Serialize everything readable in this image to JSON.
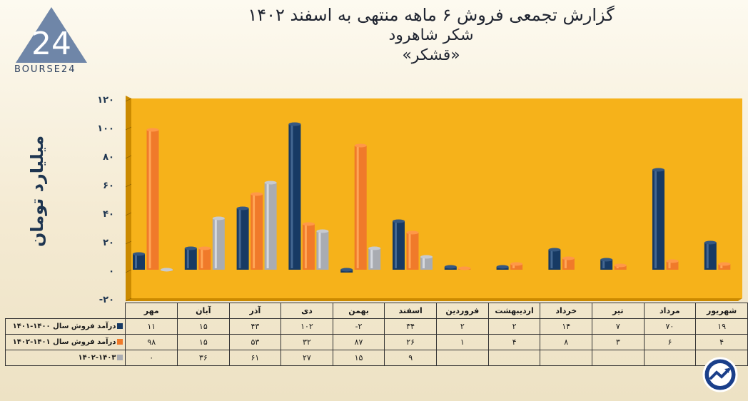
{
  "logo": {
    "text": "BOURSE24",
    "mark": "24"
  },
  "titles": {
    "line1": "گزارش تجمعی فروش ۶ ماهه منتهی به اسفند ۱۴۰۲",
    "line2": "شکر شاهرود",
    "line3": "«قشکر»"
  },
  "colors": {
    "blue": "#173a64",
    "orange": "#f07a2a",
    "gray": "#a9acb2",
    "plot_bg": "#f6b21a",
    "wall": "#cb8a00"
  },
  "chart_data": {
    "type": "bar",
    "ylabel": "میلیارد تومان",
    "ylim": [
      -20,
      120
    ],
    "yticks": [
      -20,
      0,
      20,
      40,
      60,
      80,
      100,
      120
    ],
    "ytick_labels": [
      "-۲۰",
      "۰",
      "۲۰",
      "۴۰",
      "۶۰",
      "۸۰",
      "۱۰۰",
      "۱۲۰"
    ],
    "categories": [
      "مهر",
      "آبان",
      "آذر",
      "دی",
      "بهمن",
      "اسفند",
      "فروردین",
      "اردیبهشت",
      "خرداد",
      "تیر",
      "مرداد",
      "شهریور"
    ],
    "series": [
      {
        "name": "درآمد فروش سال ۱۴۰۰-۱۴۰۱",
        "color": "#173a64",
        "values": [
          11,
          15,
          43,
          102,
          -2,
          34,
          2,
          2,
          14,
          7,
          70,
          19
        ],
        "labels": [
          "۱۱",
          "۱۵",
          "۴۳",
          "۱۰۲",
          "-۲",
          "۳۴",
          "۲",
          "۲",
          "۱۴",
          "۷",
          "۷۰",
          "۱۹"
        ]
      },
      {
        "name": "درآمد فروش سال ۱۴۰۱-۱۴۰۲",
        "color": "#f07a2a",
        "values": [
          98,
          15,
          53,
          32,
          87,
          26,
          1,
          4,
          8,
          3,
          6,
          4
        ],
        "labels": [
          "۹۸",
          "۱۵",
          "۵۳",
          "۳۲",
          "۸۷",
          "۲۶",
          "۱",
          "۴",
          "۸",
          "۳",
          "۶",
          "۴"
        ]
      },
      {
        "name": "۱۴۰۲-۱۴۰۳",
        "color": "#a9acb2",
        "values": [
          0,
          36,
          61,
          27,
          15,
          9,
          null,
          null,
          null,
          null,
          null,
          null
        ],
        "labels": [
          "۰",
          "۳۶",
          "۶۱",
          "۲۷",
          "۱۵",
          "۹",
          "",
          "",
          "",
          "",
          "",
          ""
        ]
      }
    ]
  }
}
